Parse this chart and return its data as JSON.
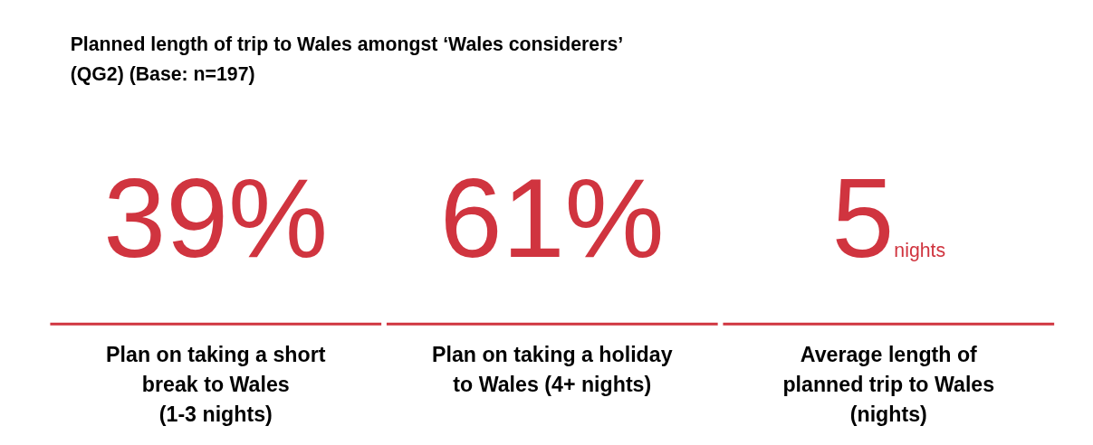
{
  "chart_data": {
    "type": "other",
    "title": "Planned length of trip to Wales amongst ‘Wales considerers’",
    "subtitle": "(QG2) (Base: n=197)",
    "categories": [
      "Plan on taking a short break to Wales (1-3 nights)",
      "Plan on taking a holiday to Wales (4+ nights)",
      "Average length of planned trip to Wales (nights)"
    ],
    "values": [
      39,
      61,
      5
    ],
    "value_labels": [
      "39%",
      "61%",
      "5nights"
    ],
    "colors": [
      "#d0343f",
      "#d0343f",
      "#d0343f"
    ]
  }
}
